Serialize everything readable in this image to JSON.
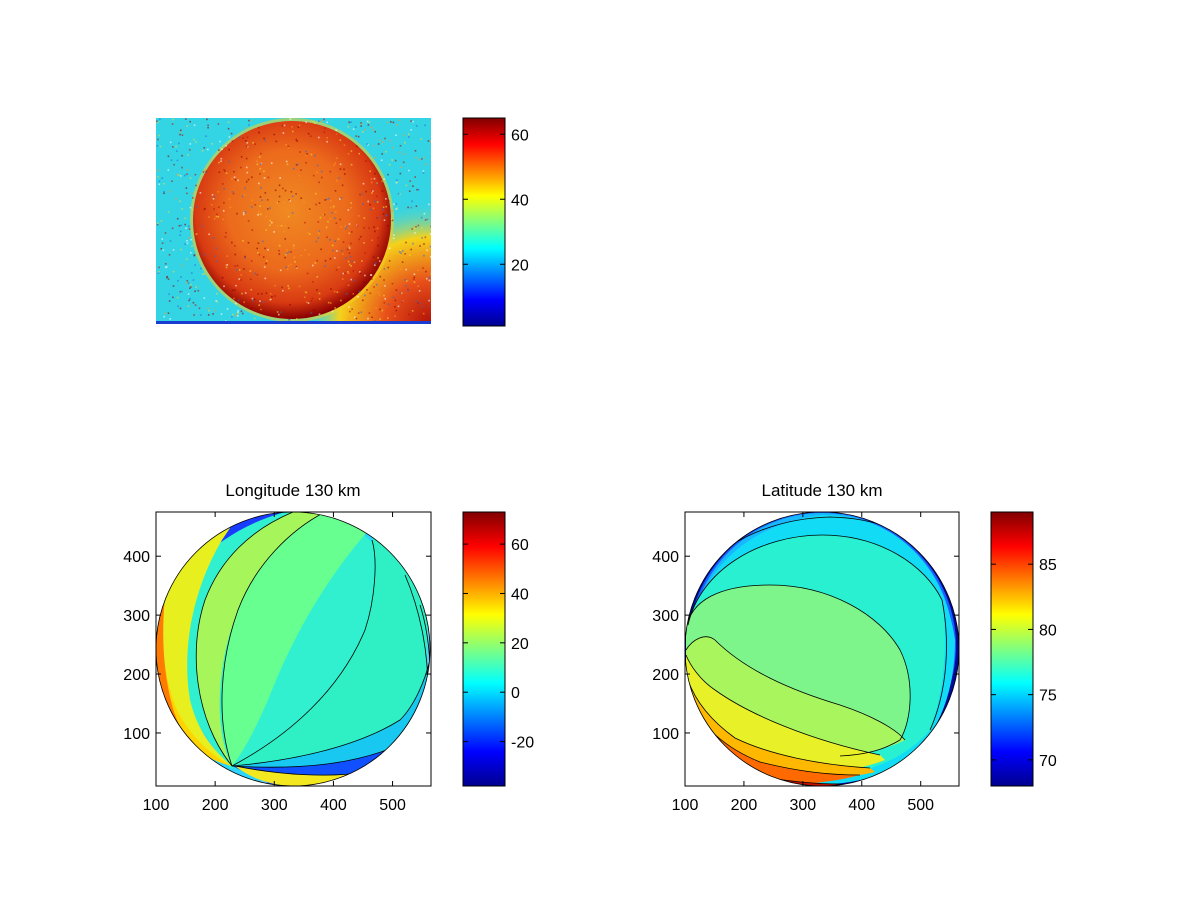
{
  "chart_data": [
    {
      "type": "heatmap",
      "title": "",
      "colormap": "jet",
      "colorbar": {
        "range": [
          1,
          65
        ],
        "ticks": [
          20,
          40,
          60
        ]
      },
      "image": {
        "annotation": "",
        "description_colors": [
          "#29d8e6",
          "#e24617",
          "#8b0000",
          "#f0e020"
        ]
      }
    },
    {
      "type": "heatmap",
      "title": "Longitude 130 km",
      "colormap": "jet",
      "xlim": [
        100,
        565
      ],
      "ylim": [
        10,
        475
      ],
      "xticks": [
        100,
        200,
        300,
        400,
        500
      ],
      "yticks": [
        100,
        200,
        300,
        400
      ],
      "colorbar": {
        "range": [
          -38,
          73
        ],
        "ticks": [
          -20,
          0,
          20,
          40,
          60
        ]
      },
      "disk": {
        "center": [
          330,
          240
        ],
        "radius": 232
      }
    },
    {
      "type": "heatmap",
      "title": "Latitude 130 km",
      "colormap": "jet",
      "xlim": [
        100,
        565
      ],
      "ylim": [
        10,
        475
      ],
      "xticks": [
        100,
        200,
        300,
        400,
        500
      ],
      "yticks": [
        100,
        200,
        300,
        400
      ],
      "colorbar": {
        "range": [
          68,
          89
        ],
        "ticks": [
          70,
          75,
          80,
          85
        ]
      },
      "disk": {
        "center": [
          330,
          240
        ],
        "radius": 232
      }
    }
  ]
}
